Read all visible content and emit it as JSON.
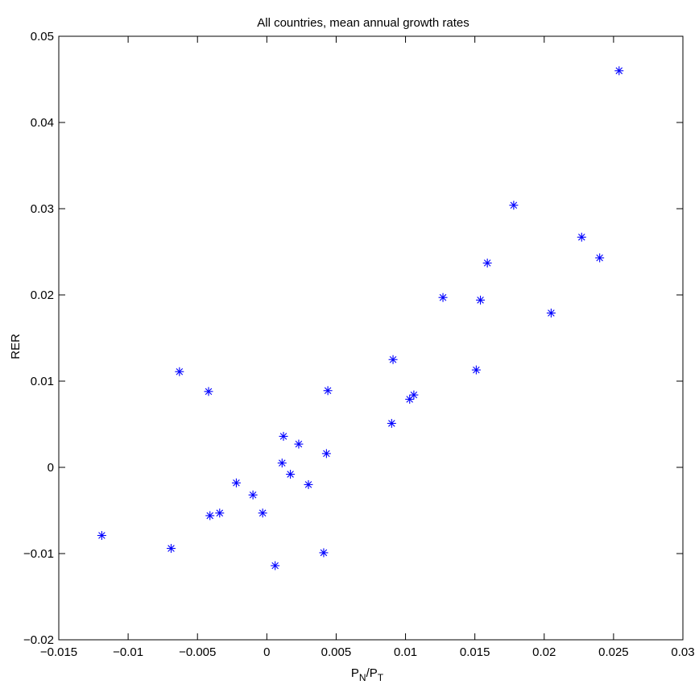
{
  "chart_data": {
    "type": "scatter",
    "title": "All countries, mean annual growth rates",
    "xlabel": {
      "base": "P",
      "sub1": "N",
      "sep": "/",
      "base2": "P",
      "sub2": "T"
    },
    "ylabel": "RER",
    "xlim": [
      -0.015,
      0.03
    ],
    "ylim": [
      -0.02,
      0.05
    ],
    "xticks": [
      -0.015,
      -0.01,
      -0.005,
      0,
      0.005,
      0.01,
      0.015,
      0.02,
      0.025,
      0.03
    ],
    "xtick_labels": [
      "−0.015",
      "−0.01",
      "−0.005",
      "0",
      "0.005",
      "0.01",
      "0.015",
      "0.02",
      "0.025",
      "0.03"
    ],
    "yticks": [
      -0.02,
      -0.01,
      0,
      0.01,
      0.02,
      0.03,
      0.04,
      0.05
    ],
    "ytick_labels": [
      "−0.02",
      "−0.01",
      "0",
      "0.01",
      "0.02",
      "0.03",
      "0.04",
      "0.05"
    ],
    "grid": false,
    "marker": "asterisk",
    "marker_color": "#0000ff",
    "points": [
      {
        "x": -0.0119,
        "y": -0.0079
      },
      {
        "x": -0.0069,
        "y": -0.0094
      },
      {
        "x": -0.0063,
        "y": 0.0111
      },
      {
        "x": -0.0042,
        "y": 0.0088
      },
      {
        "x": -0.0041,
        "y": -0.0056
      },
      {
        "x": -0.0034,
        "y": -0.0053
      },
      {
        "x": -0.0022,
        "y": -0.0018
      },
      {
        "x": -0.001,
        "y": -0.0032
      },
      {
        "x": -0.0003,
        "y": -0.0053
      },
      {
        "x": 0.0006,
        "y": -0.0114
      },
      {
        "x": 0.0011,
        "y": 0.0005
      },
      {
        "x": 0.0012,
        "y": 0.0036
      },
      {
        "x": 0.0017,
        "y": -0.0008
      },
      {
        "x": 0.0023,
        "y": 0.0027
      },
      {
        "x": 0.003,
        "y": -0.002
      },
      {
        "x": 0.0041,
        "y": -0.0099
      },
      {
        "x": 0.0043,
        "y": 0.0016
      },
      {
        "x": 0.0044,
        "y": 0.0089
      },
      {
        "x": 0.009,
        "y": 0.0051
      },
      {
        "x": 0.0091,
        "y": 0.0125
      },
      {
        "x": 0.0103,
        "y": 0.0079
      },
      {
        "x": 0.0106,
        "y": 0.0084
      },
      {
        "x": 0.0127,
        "y": 0.0197
      },
      {
        "x": 0.0151,
        "y": 0.0113
      },
      {
        "x": 0.0154,
        "y": 0.0194
      },
      {
        "x": 0.0159,
        "y": 0.0237
      },
      {
        "x": 0.0178,
        "y": 0.0304
      },
      {
        "x": 0.0205,
        "y": 0.0179
      },
      {
        "x": 0.0227,
        "y": 0.0267
      },
      {
        "x": 0.024,
        "y": 0.0243
      },
      {
        "x": 0.0254,
        "y": 0.046
      }
    ]
  }
}
